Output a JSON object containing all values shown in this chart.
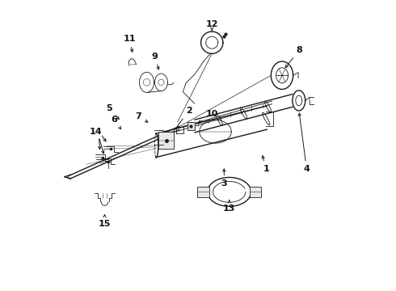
{
  "bg": "#ffffff",
  "lc": "#1a1a1a",
  "fig_w": 4.9,
  "fig_h": 3.6,
  "dpi": 100,
  "fs": 8,
  "labels": {
    "1": [
      0.735,
      0.415,
      0.757,
      0.468
    ],
    "2": [
      0.468,
      0.622,
      0.43,
      0.57
    ],
    "3": [
      0.59,
      0.368,
      0.6,
      0.43
    ],
    "4": [
      0.872,
      0.415,
      0.856,
      0.462
    ],
    "5": [
      0.192,
      0.618,
      0.26,
      0.572
    ],
    "6": [
      0.21,
      0.575,
      0.248,
      0.545
    ],
    "7": [
      0.298,
      0.595,
      0.33,
      0.572
    ],
    "8": [
      0.845,
      0.822,
      0.808,
      0.765
    ],
    "9": [
      0.338,
      0.8,
      0.34,
      0.752
    ],
    "10": [
      0.545,
      0.6,
      0.498,
      0.57
    ],
    "11": [
      0.265,
      0.862,
      0.272,
      0.81
    ],
    "12": [
      0.555,
      0.912,
      0.555,
      0.866
    ],
    "13": [
      0.608,
      0.282,
      0.608,
      0.318
    ],
    "14": [
      0.148,
      0.538,
      0.178,
      0.51
    ],
    "15": [
      0.178,
      0.228,
      0.178,
      0.268
    ]
  }
}
